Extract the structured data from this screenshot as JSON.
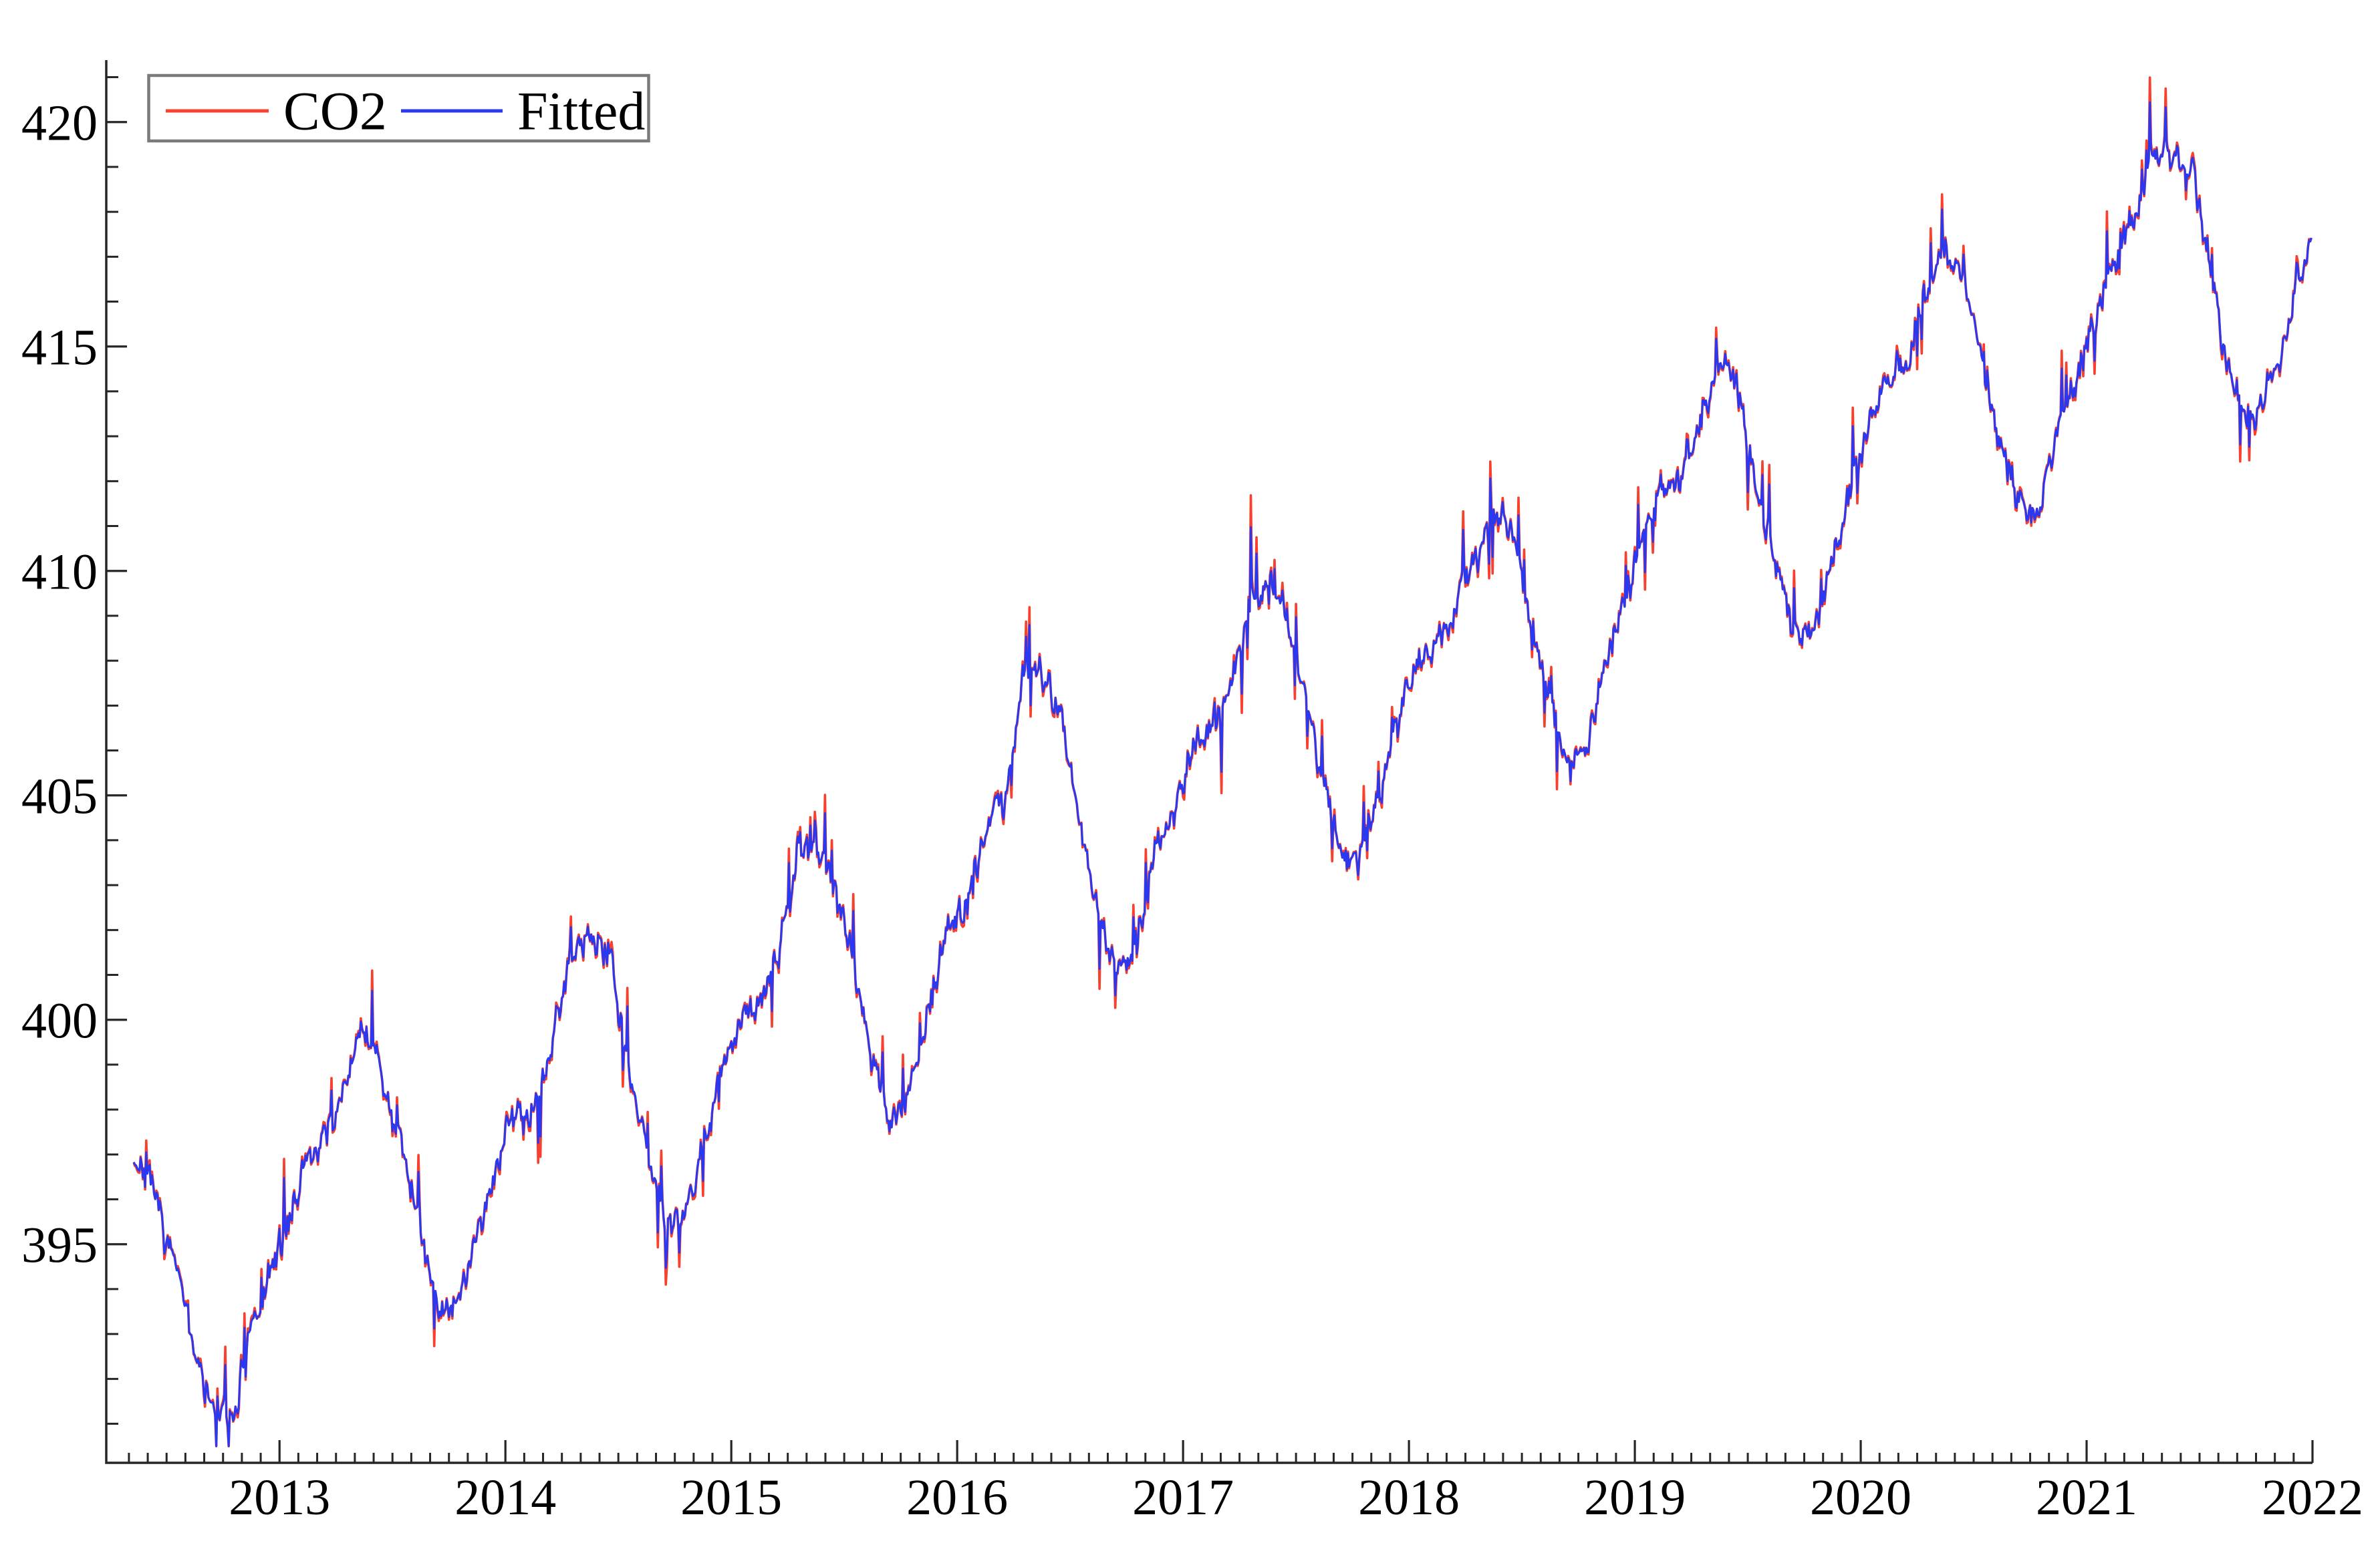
{
  "chart_data": {
    "type": "line",
    "title": "",
    "xlabel": "",
    "ylabel": "",
    "background": "#ffffff",
    "grid": false,
    "axis_color": "#262626",
    "xlim": [
      2012.233,
      2022.0
    ],
    "ylim": [
      390.13,
      421.38
    ],
    "x_major_ticks": [
      2013,
      2014,
      2015,
      2016,
      2017,
      2018,
      2019,
      2020,
      2021,
      2022
    ],
    "x_tick_labels": [
      "2013",
      "2014",
      "2015",
      "2016",
      "2017",
      "2018",
      "2019",
      "2020",
      "2021",
      "2022"
    ],
    "x_minor_tick_interval": 0.0833333,
    "y_major_ticks": [
      395,
      400,
      405,
      410,
      415,
      420
    ],
    "y_tick_labels": [
      "395",
      "400",
      "405",
      "410",
      "415",
      "420"
    ],
    "y_minor_tick_interval": 1,
    "y_minor_tick_range": [
      391,
      421
    ],
    "legend": {
      "position": "top-left",
      "entries": [
        {
          "label": "CO2",
          "color": "#f8402e"
        },
        {
          "label": "Fitted",
          "color": "#2a38ef"
        }
      ]
    },
    "series_monthly": {
      "cadence": "monthly",
      "start_month": "2012-05",
      "note": "Monthly mean level read from the plotted daily curves; both series overlap almost exactly.",
      "co2": [
        396.9,
        395.9,
        394.4,
        392.6,
        391.2,
        391.1,
        392.9,
        394.4,
        395.6,
        396.9,
        397.4,
        398.5,
        399.9,
        398.7,
        397.3,
        395.3,
        393.6,
        393.7,
        395.2,
        396.9,
        397.9,
        398.1,
        399.6,
        401.4,
        401.9,
        401.4,
        399.2,
        397.2,
        395.5,
        395.7,
        397.2,
        398.9,
        400.0,
        400.4,
        401.6,
        403.6,
        404.0,
        403.0,
        401.4,
        399.1,
        397.6,
        398.4,
        400.3,
        402.1,
        402.7,
        404.2,
        405.0,
        407.6,
        407.8,
        406.9,
        404.5,
        402.3,
        401.1,
        401.7,
        403.7,
        404.6,
        406.2,
        406.5,
        407.3,
        409.1,
        409.8,
        408.9,
        407.2,
        405.2,
        403.5,
        403.7,
        405.2,
        406.9,
        408.1,
        408.4,
        409.3,
        410.3,
        411.3,
        410.9,
        408.8,
        407.1,
        405.6,
        406.1,
        408.1,
        409.2,
        410.9,
        411.8,
        412.0,
        413.4,
        414.8,
        414.0,
        411.9,
        410.1,
        408.6,
        408.6,
        410.4,
        411.9,
        413.5,
        414.2,
        414.6,
        416.3,
        417.2,
        416.5,
        414.5,
        412.7,
        411.4,
        411.4,
        413.2,
        414.4,
        415.6,
        416.9,
        417.8,
        419.2,
        419.2,
        419.0,
        417.0,
        414.6,
        413.4,
        414.0,
        415.1,
        416.8,
        418.2
      ],
      "fitted": [
        396.9,
        395.9,
        394.4,
        392.6,
        391.2,
        391.1,
        392.9,
        394.4,
        395.6,
        396.9,
        397.4,
        398.5,
        399.9,
        398.7,
        397.3,
        395.3,
        393.6,
        393.7,
        395.2,
        396.9,
        397.9,
        398.1,
        399.6,
        401.4,
        401.9,
        401.4,
        399.2,
        397.2,
        395.5,
        395.7,
        397.2,
        398.9,
        400.0,
        400.4,
        401.6,
        403.6,
        404.0,
        403.0,
        401.4,
        399.1,
        397.6,
        398.4,
        400.3,
        402.1,
        402.7,
        404.2,
        405.0,
        407.6,
        407.8,
        406.9,
        404.5,
        402.3,
        401.1,
        401.7,
        403.7,
        404.6,
        406.2,
        406.5,
        407.3,
        409.1,
        409.8,
        408.9,
        407.2,
        405.2,
        403.5,
        403.7,
        405.2,
        406.9,
        408.1,
        408.4,
        409.3,
        410.3,
        411.3,
        410.9,
        408.8,
        407.1,
        405.6,
        406.1,
        408.1,
        409.2,
        410.9,
        411.8,
        412.0,
        413.4,
        414.8,
        414.0,
        411.9,
        410.1,
        408.6,
        408.6,
        410.4,
        411.9,
        413.5,
        414.2,
        414.6,
        416.3,
        417.2,
        416.5,
        414.5,
        412.7,
        411.4,
        411.4,
        413.2,
        414.4,
        415.6,
        416.9,
        417.8,
        419.2,
        419.2,
        419.0,
        417.0,
        414.6,
        413.4,
        414.0,
        415.1,
        416.8,
        418.2
      ]
    },
    "featured_spikes": [
      {
        "t": 2012.72,
        "delta": -1.0
      },
      {
        "t": 2014.71,
        "delta": -1.2
      },
      {
        "t": 2015.37,
        "delta": 0.8
      },
      {
        "t": 2016.32,
        "delta": 1.2
      },
      {
        "t": 2016.63,
        "delta": -1.7
      },
      {
        "t": 2016.7,
        "delta": -1.1
      },
      {
        "t": 2017.3,
        "delta": 2.6
      },
      {
        "t": 2018.36,
        "delta": 1.4
      },
      {
        "t": 2019.36,
        "delta": 0.9
      },
      {
        "t": 2020.31,
        "delta": 1.3
      },
      {
        "t": 2021.28,
        "delta": 2.0
      },
      {
        "t": 2021.35,
        "delta": 1.4
      }
    ],
    "daily_render": {
      "t_start": 2012.355,
      "t_end": 2022.0,
      "points_per_year": 200,
      "ar": 0.45,
      "noise_sd": 0.2,
      "spike_prob": 0.06,
      "spike_min": 0.4,
      "spike_max": 1.5,
      "down_fraction": 0.45,
      "fitted_noise_factor": 0.82,
      "fitted_spike_factor": 0.72,
      "value_clamp": [
        390.5,
        421.32
      ],
      "seed": 7
    }
  }
}
